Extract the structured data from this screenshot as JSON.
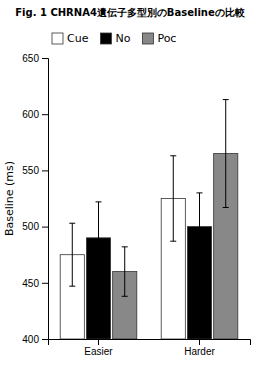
{
  "chart_data": {
    "type": "bar",
    "title": "Fig. 1  CHRNA4遺伝子多型別のBaselineの比較",
    "categories": [
      "Easier",
      "Harder"
    ],
    "series": [
      {
        "name": "Cue",
        "color": "white",
        "values": [
          475,
          525
        ],
        "errors": [
          28,
          38
        ]
      },
      {
        "name": "No",
        "color": "black",
        "values": [
          490,
          500
        ],
        "errors": [
          32,
          30
        ]
      },
      {
        "name": "Poc",
        "color": "#888888",
        "values": [
          460,
          565
        ],
        "errors": [
          22,
          48
        ]
      }
    ],
    "ylabel": "Baseline (ms)",
    "ylim": [
      400,
      650
    ],
    "yticks": [
      400,
      450,
      500,
      550,
      600,
      650
    ],
    "legend": "upper left",
    "grid": false
  }
}
